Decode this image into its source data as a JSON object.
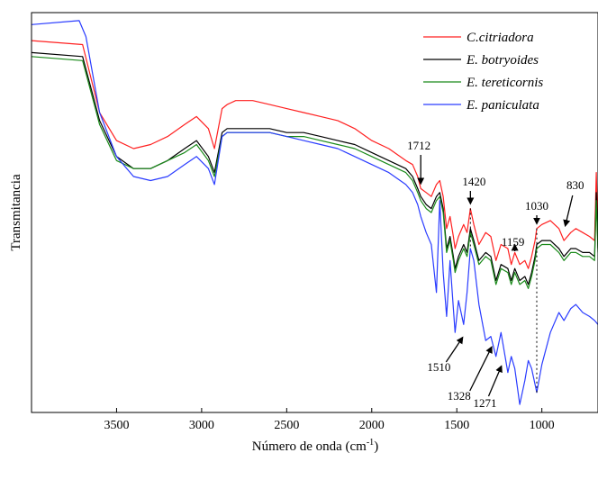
{
  "chart_data": {
    "type": "line",
    "title": "",
    "xlabel": "Número de onda (cm",
    "xlabel_sup": "-1",
    "xlabel_close": ")",
    "ylabel": "Transmitancia",
    "xlim": [
      4000,
      670
    ],
    "x_reversed": true,
    "grid": false,
    "legend_position": "top-right",
    "x_ticks": [
      3500,
      3000,
      2500,
      2000,
      1500,
      1000
    ],
    "x_tick_labels": [
      "3500",
      "3000",
      "2500",
      "2000",
      "1500",
      "1000"
    ],
    "series": [
      {
        "name": "C.citriadora",
        "color": "#ff2020",
        "x": [
          4000,
          3700,
          3600,
          3500,
          3400,
          3300,
          3200,
          3100,
          3030,
          2960,
          2925,
          2880,
          2850,
          2800,
          2700,
          2600,
          2500,
          2400,
          2300,
          2200,
          2100,
          2000,
          1900,
          1800,
          1760,
          1730,
          1712,
          1680,
          1650,
          1620,
          1600,
          1580,
          1560,
          1540,
          1520,
          1510,
          1490,
          1460,
          1440,
          1420,
          1400,
          1370,
          1330,
          1300,
          1270,
          1240,
          1200,
          1180,
          1159,
          1130,
          1100,
          1080,
          1060,
          1040,
          1030,
          1000,
          950,
          900,
          870,
          830,
          800,
          760,
          720,
          690,
          680,
          670
        ],
        "y": [
          0.93,
          0.92,
          0.75,
          0.68,
          0.66,
          0.67,
          0.69,
          0.72,
          0.74,
          0.71,
          0.66,
          0.76,
          0.77,
          0.78,
          0.78,
          0.77,
          0.76,
          0.75,
          0.74,
          0.73,
          0.71,
          0.68,
          0.66,
          0.63,
          0.62,
          0.59,
          0.56,
          0.55,
          0.54,
          0.57,
          0.58,
          0.54,
          0.46,
          0.49,
          0.44,
          0.41,
          0.44,
          0.47,
          0.45,
          0.51,
          0.47,
          0.42,
          0.45,
          0.44,
          0.38,
          0.42,
          0.41,
          0.37,
          0.4,
          0.37,
          0.38,
          0.36,
          0.39,
          0.43,
          0.46,
          0.47,
          0.48,
          0.46,
          0.43,
          0.45,
          0.46,
          0.45,
          0.44,
          0.43,
          0.6,
          0.44
        ]
      },
      {
        "name": "E. botryoides",
        "color": "#000000",
        "x": [
          4000,
          3700,
          3600,
          3500,
          3400,
          3300,
          3200,
          3100,
          3030,
          2960,
          2925,
          2880,
          2850,
          2800,
          2700,
          2600,
          2500,
          2400,
          2300,
          2200,
          2100,
          2000,
          1900,
          1800,
          1760,
          1730,
          1712,
          1680,
          1650,
          1620,
          1600,
          1580,
          1560,
          1540,
          1520,
          1510,
          1490,
          1460,
          1440,
          1420,
          1400,
          1370,
          1330,
          1300,
          1270,
          1240,
          1200,
          1180,
          1159,
          1130,
          1100,
          1080,
          1060,
          1040,
          1030,
          1000,
          950,
          900,
          870,
          830,
          800,
          760,
          720,
          690,
          680,
          670
        ],
        "y": [
          0.9,
          0.89,
          0.73,
          0.64,
          0.61,
          0.61,
          0.63,
          0.66,
          0.68,
          0.64,
          0.6,
          0.7,
          0.71,
          0.71,
          0.71,
          0.71,
          0.7,
          0.7,
          0.69,
          0.68,
          0.67,
          0.65,
          0.63,
          0.61,
          0.59,
          0.56,
          0.54,
          0.52,
          0.51,
          0.54,
          0.55,
          0.51,
          0.41,
          0.44,
          0.39,
          0.36,
          0.39,
          0.42,
          0.4,
          0.46,
          0.43,
          0.38,
          0.4,
          0.39,
          0.33,
          0.37,
          0.36,
          0.33,
          0.36,
          0.33,
          0.34,
          0.32,
          0.35,
          0.39,
          0.42,
          0.43,
          0.43,
          0.41,
          0.39,
          0.41,
          0.41,
          0.4,
          0.4,
          0.39,
          0.55,
          0.41
        ]
      },
      {
        "name": "E. tereticornis",
        "color": "#1a8a1a",
        "x": [
          4000,
          3700,
          3600,
          3500,
          3400,
          3300,
          3200,
          3100,
          3030,
          2960,
          2925,
          2880,
          2850,
          2800,
          2700,
          2600,
          2500,
          2400,
          2300,
          2200,
          2100,
          2000,
          1900,
          1800,
          1760,
          1730,
          1712,
          1680,
          1650,
          1620,
          1600,
          1580,
          1560,
          1540,
          1520,
          1510,
          1490,
          1460,
          1440,
          1420,
          1400,
          1370,
          1330,
          1300,
          1270,
          1240,
          1200,
          1180,
          1159,
          1130,
          1100,
          1080,
          1060,
          1040,
          1030,
          1000,
          950,
          900,
          870,
          830,
          800,
          760,
          720,
          690,
          680,
          670
        ],
        "y": [
          0.89,
          0.88,
          0.72,
          0.63,
          0.61,
          0.61,
          0.63,
          0.65,
          0.67,
          0.63,
          0.59,
          0.69,
          0.7,
          0.7,
          0.7,
          0.7,
          0.69,
          0.69,
          0.68,
          0.67,
          0.66,
          0.64,
          0.62,
          0.6,
          0.58,
          0.55,
          0.53,
          0.51,
          0.5,
          0.53,
          0.54,
          0.5,
          0.4,
          0.43,
          0.38,
          0.35,
          0.38,
          0.41,
          0.39,
          0.45,
          0.42,
          0.37,
          0.39,
          0.38,
          0.32,
          0.36,
          0.35,
          0.32,
          0.35,
          0.32,
          0.33,
          0.31,
          0.34,
          0.38,
          0.41,
          0.42,
          0.42,
          0.4,
          0.38,
          0.4,
          0.4,
          0.39,
          0.39,
          0.38,
          0.53,
          0.4
        ]
      },
      {
        "name": "E. paniculata",
        "color": "#2a3cff",
        "x": [
          4000,
          3720,
          3680,
          3600,
          3500,
          3400,
          3300,
          3200,
          3100,
          3030,
          2960,
          2925,
          2880,
          2850,
          2800,
          2700,
          2600,
          2500,
          2400,
          2300,
          2200,
          2100,
          2000,
          1900,
          1800,
          1760,
          1730,
          1712,
          1680,
          1650,
          1620,
          1600,
          1580,
          1560,
          1540,
          1520,
          1510,
          1490,
          1460,
          1440,
          1420,
          1400,
          1370,
          1330,
          1300,
          1270,
          1240,
          1200,
          1180,
          1159,
          1130,
          1100,
          1080,
          1060,
          1040,
          1030,
          1000,
          950,
          900,
          870,
          830,
          800,
          760,
          720,
          690,
          670
        ],
        "y": [
          0.97,
          0.98,
          0.94,
          0.75,
          0.64,
          0.59,
          0.58,
          0.59,
          0.62,
          0.64,
          0.61,
          0.57,
          0.69,
          0.7,
          0.7,
          0.7,
          0.7,
          0.69,
          0.68,
          0.67,
          0.66,
          0.64,
          0.62,
          0.6,
          0.57,
          0.55,
          0.52,
          0.49,
          0.45,
          0.42,
          0.3,
          0.53,
          0.35,
          0.24,
          0.38,
          0.26,
          0.2,
          0.28,
          0.22,
          0.3,
          0.41,
          0.38,
          0.27,
          0.18,
          0.19,
          0.14,
          0.2,
          0.1,
          0.14,
          0.11,
          0.02,
          0.08,
          0.13,
          0.11,
          0.07,
          0.05,
          0.12,
          0.2,
          0.25,
          0.23,
          0.26,
          0.27,
          0.25,
          0.24,
          0.23,
          0.22
        ]
      }
    ],
    "annotations": [
      {
        "label": "1712",
        "x": 1712
      },
      {
        "label": "1420",
        "x": 1420
      },
      {
        "label": "1030",
        "x": 1030
      },
      {
        "label": "830",
        "x": 830
      },
      {
        "label": "1159",
        "x": 1159
      },
      {
        "label": "1510",
        "x": 1510
      },
      {
        "label": "1328",
        "x": 1328
      },
      {
        "label": "1271",
        "x": 1271
      }
    ]
  }
}
